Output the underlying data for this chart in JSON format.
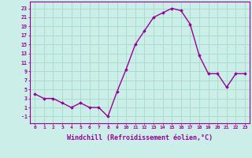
{
  "x": [
    0,
    1,
    2,
    3,
    4,
    5,
    6,
    7,
    8,
    9,
    10,
    11,
    12,
    13,
    14,
    15,
    16,
    17,
    18,
    19,
    20,
    21,
    22,
    23
  ],
  "y": [
    4,
    3,
    3,
    2,
    1,
    2,
    1,
    1,
    -1,
    4.5,
    9.5,
    15,
    18,
    21,
    22,
    23,
    22.5,
    19.5,
    12.5,
    8.5,
    8.5,
    5.5,
    8.5,
    8.5
  ],
  "line_color": "#990099",
  "marker": "D",
  "marker_size": 1.8,
  "line_width": 1.0,
  "xlabel": "Windchill (Refroidissement éolien,°C)",
  "xlabel_fontsize": 6.0,
  "xtick_labels": [
    "0",
    "1",
    "2",
    "3",
    "4",
    "5",
    "6",
    "7",
    "8",
    "9",
    "10",
    "11",
    "12",
    "13",
    "14",
    "15",
    "16",
    "17",
    "18",
    "19",
    "20",
    "21",
    "22",
    "23"
  ],
  "ytick_values": [
    -1,
    1,
    3,
    5,
    7,
    9,
    11,
    13,
    15,
    17,
    19,
    21,
    23
  ],
  "ylim": [
    -2.5,
    24.5
  ],
  "xlim": [
    -0.5,
    23.5
  ],
  "bg_color": "#cceee8",
  "grid_color": "#aaddcc",
  "tick_color": "#990099",
  "label_color": "#990099"
}
